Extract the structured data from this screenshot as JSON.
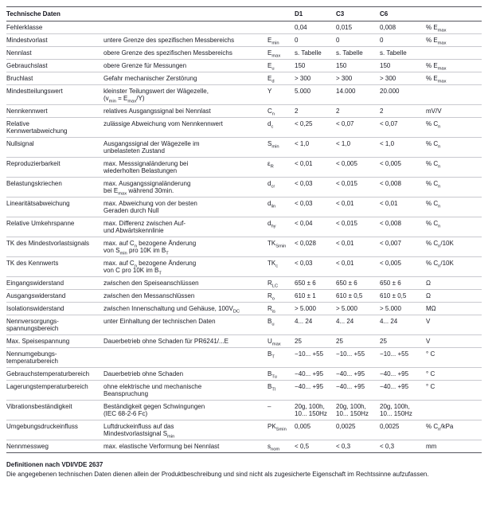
{
  "table": {
    "title": "Technische Daten",
    "columns": [
      "D1",
      "C3",
      "C6"
    ],
    "rows": [
      {
        "name": "Fehlerklasse",
        "desc": "",
        "symbol": "",
        "d1": "0,04",
        "c3": "0,015",
        "c6": "0,008",
        "unit": "% E_{max}"
      },
      {
        "name": "Mindestvorlast",
        "desc": "untere Grenze des spezifischen Messbereichs",
        "symbol": "E_{min}",
        "d1": "0",
        "c3": "0",
        "c6": "0",
        "unit": "% E_{max}"
      },
      {
        "name": "Nennlast",
        "desc": "obere Grenze des spezifischen Messbereichs",
        "symbol": "E_{max}",
        "d1": "s. Tabelle",
        "c3": "s. Tabelle",
        "c6": "s. Tabelle",
        "unit": ""
      },
      {
        "name": "Gebrauchslast",
        "desc": "obere Grenze für Messungen",
        "symbol": "E_{u}",
        "d1": "150",
        "c3": "150",
        "c6": "150",
        "unit": "% E_{max}"
      },
      {
        "name": "Bruchlast",
        "desc": "Gefahr mechanischer Zerstörung",
        "symbol": "E_{d}",
        "d1": "> 300",
        "c3": "> 300",
        "c6": "> 300",
        "unit": "% E_{max}"
      },
      {
        "name": "Mindestteilungswert",
        "desc": "kleinster Teilungswert der Wägezelle,\n(v_{min} = E_{max}/Y)",
        "symbol": "Y",
        "d1": "5.000",
        "c3": "14.000",
        "c6": "20.000",
        "unit": ""
      },
      {
        "name": "Nennkennwert",
        "desc": "relatives Ausgangssignal bei Nennlast",
        "symbol": "C_{n}",
        "d1": "2",
        "c3": "2",
        "c6": "2",
        "unit": "mV/V"
      },
      {
        "name": "Relative\nKennwertabweichung",
        "desc": "zulässige Abweichung vom Nennkennwert",
        "symbol": "d_{c}",
        "d1": "< 0,25",
        "c3": "< 0,07",
        "c6": "< 0,07",
        "unit": "% C_{n}"
      },
      {
        "name": "Nullsignal",
        "desc": "Ausgangssignal der Wägezelle im\nunbelasteten Zustand",
        "symbol": "S_{min}",
        "d1": "< 1,0",
        "c3": "< 1,0",
        "c6": "< 1,0",
        "unit": "% C_{n}"
      },
      {
        "name": "Reproduzierbarkeit",
        "desc": "max. Messsignaländerung bei\nwiederholten Belastungen",
        "symbol": "ε_{R}",
        "d1": "< 0,01",
        "c3": "< 0,005",
        "c6": "< 0,005",
        "unit": "% C_{n}"
      },
      {
        "name": "Belastungskriechen",
        "desc": "max. Ausgangssignaländerung\nbei E_{max} während 30min.",
        "symbol": "d_{cr}",
        "d1": "< 0,03",
        "c3": "< 0,015",
        "c6": "< 0,008",
        "unit": "% C_{n}"
      },
      {
        "name": "Linearitätsabweichung",
        "desc": "max. Abweichung von der besten\nGeraden durch Null",
        "symbol": "d_{lin}",
        "d1": "< 0,03",
        "c3": "< 0,01",
        "c6": "< 0,01",
        "unit": "% C_{n}"
      },
      {
        "name": "Relative Umkehrspanne",
        "desc": "max. Differenz zwischen Auf-\nund Abwärtskennlinie",
        "symbol": "d_{hy}",
        "d1": "< 0,04",
        "c3": "< 0,015",
        "c6": "< 0,008",
        "unit": "% C_{n}"
      },
      {
        "name": "TK des Mindestvorlastsignals",
        "desc": "max. auf C_{n} bezogene Änderung\nvon S_{min} pro 10K im B_{T}",
        "symbol": "TK_{Smin}",
        "d1": "< 0,028",
        "c3": "< 0,01",
        "c6": "< 0,007",
        "unit": "% C_{n}/10K"
      },
      {
        "name": "TK des Kennwerts",
        "desc": "max. auf C_{n} bezogene Änderung\nvon C pro 10K im B_{T}",
        "symbol": "TK_{c}",
        "d1": "< 0,03",
        "c3": "< 0,01",
        "c6": "< 0,005",
        "unit": "% C_{n}/10K"
      },
      {
        "name": "Eingangswiderstand",
        "desc": "zwischen den Speiseanschlüssen",
        "symbol": "R_{LC}",
        "d1": "650 ± 6",
        "c3": "650 ± 6",
        "c6": "650 ± 6",
        "unit": "Ω"
      },
      {
        "name": "Ausgangswiderstand",
        "desc": "zwischen den Messanschlüssen",
        "symbol": "R_{o}",
        "d1": "610 ± 1",
        "c3": "610 ± 0,5",
        "c6": "610 ± 0,5",
        "unit": "Ω"
      },
      {
        "name": "Isolationswiderstand",
        "desc": "zwischen Innenschaltung und Gehäuse, 100V_{DC}",
        "symbol": "R_{is}",
        "d1": "> 5.000",
        "c3": "> 5.000",
        "c6": "> 5.000",
        "unit": "MΩ"
      },
      {
        "name": "Nennversorgungs-\nspannungsbereich",
        "desc": "unter Einhaltung der technischen Daten",
        "symbol": "B_{u}",
        "d1": "4... 24",
        "c3": "4... 24",
        "c6": "4... 24",
        "unit": "V"
      },
      {
        "name": "Max. Speisespannung",
        "desc": "Dauerbetrieb ohne Schaden für PR6241/...E",
        "symbol": "U_{max}",
        "d1": "25",
        "c3": "25",
        "c6": "25",
        "unit": "V"
      },
      {
        "name": "Nennumgebungs-\ntemperaturbereich",
        "desc": "",
        "symbol": "B_{T}",
        "d1": "−10... +55",
        "c3": "−10... +55",
        "c6": "−10... +55",
        "unit": "° C"
      },
      {
        "name": "Gebrauchstemperaturbereich",
        "desc": "Dauerbetrieb ohne Schaden",
        "symbol": "B_{Tu}",
        "d1": "−40... +95",
        "c3": "−40... +95",
        "c6": "−40... +95",
        "unit": "° C"
      },
      {
        "name": "Lagerungstemperaturbereich",
        "desc": "ohne elektrische und mechanische\nBeanspruchung",
        "symbol": "B_{Tl}",
        "d1": "−40... +95",
        "c3": "−40... +95",
        "c6": "−40... +95",
        "unit": "° C"
      },
      {
        "name": "Vibrationsbeständigkeit",
        "desc": "Beständigkeit gegen Schwingungen\n(IEC 68-2-6 Fc)",
        "symbol": "–",
        "d1": "20g, 100h,\n10... 150Hz",
        "c3": "20g, 100h,\n10... 150Hz",
        "c6": "20g, 100h,\n10... 150Hz",
        "unit": ""
      },
      {
        "name": "Umgebungsdruckeinfluss",
        "desc": "Luftdruckeinfluss auf das\nMindestvorlastsignal S_{min}",
        "symbol": "PK_{Smin}",
        "d1": "0,005",
        "c3": "0,0025",
        "c6": "0,0025",
        "unit": "% C_{n}/kPa"
      },
      {
        "name": "Nennmessweg",
        "desc": "max. elastische Verformung bei Nennlast",
        "symbol": "s_{nom}",
        "d1": "< 0,5",
        "c3": "< 0,3",
        "c6": "< 0,3",
        "unit": "mm"
      }
    ]
  },
  "footer": {
    "line1": "Definitionen nach VDI/VDE 2637",
    "line2": "Die angegebenen technischen Daten dienen allein der Produktbeschreibung und sind nicht\nals zugesicherte Eigenschaft im Rechtssinne aufzufassen."
  }
}
